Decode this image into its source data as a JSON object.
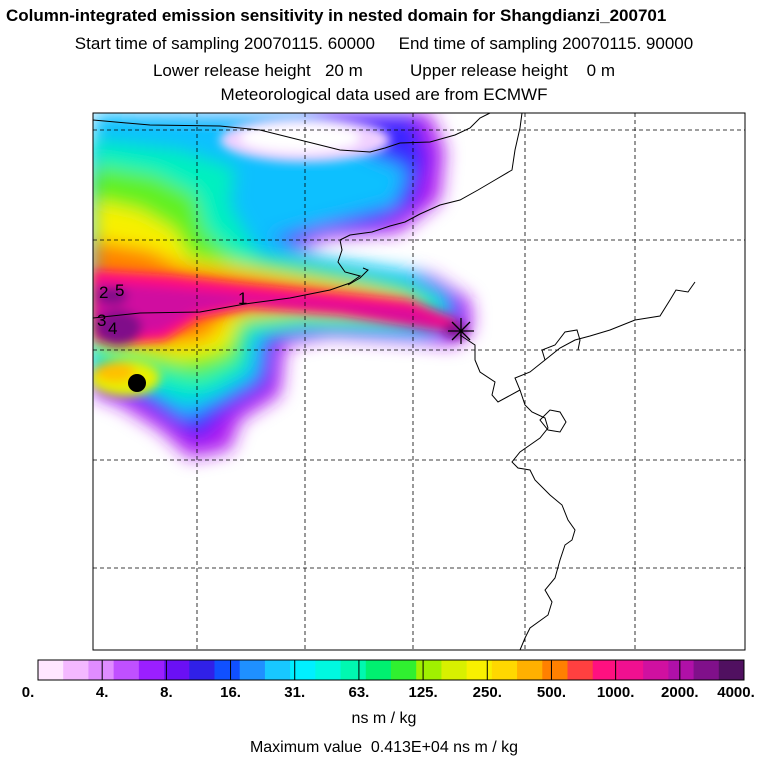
{
  "header": {
    "title": "Column-integrated emission sensitivity in nested domain for Shangdianzi_200701",
    "sampling": "Start time of sampling 20070115. 60000     End time of sampling 20070115. 90000",
    "release": "Lower release height   20 m          Upper release height    0 m",
    "met": "Meteorological data used are from ECMWF"
  },
  "map": {
    "plume_labels": [
      "1",
      "2",
      "5",
      "3",
      "4"
    ],
    "station_marker": "receptor-dot-icon",
    "release_marker": "release-star-icon"
  },
  "colorbar": {
    "tick_labels": [
      "0.",
      "4.",
      "8.",
      "16.",
      "31.",
      "63.",
      "125.",
      "250.",
      "500.",
      "1000.",
      "2000.",
      "4000."
    ],
    "colors": [
      "#ffe6ff",
      "#f4b8ff",
      "#e08cff",
      "#c050ff",
      "#9b1fff",
      "#6a10f5",
      "#3020e8",
      "#1050ff",
      "#1f90ff",
      "#18c8ff",
      "#00f0ff",
      "#00f8e0",
      "#00f8b0",
      "#00f070",
      "#30f030",
      "#a0f000",
      "#d8f000",
      "#f8f000",
      "#ffd800",
      "#ffb000",
      "#ff8000",
      "#ff4040",
      "#ff1080",
      "#f01090",
      "#d010a0",
      "#b010a8",
      "#80108a",
      "#501060"
    ],
    "units": "ns m / kg",
    "max_line": "Maximum value  0.413E+04 ns m / kg"
  }
}
